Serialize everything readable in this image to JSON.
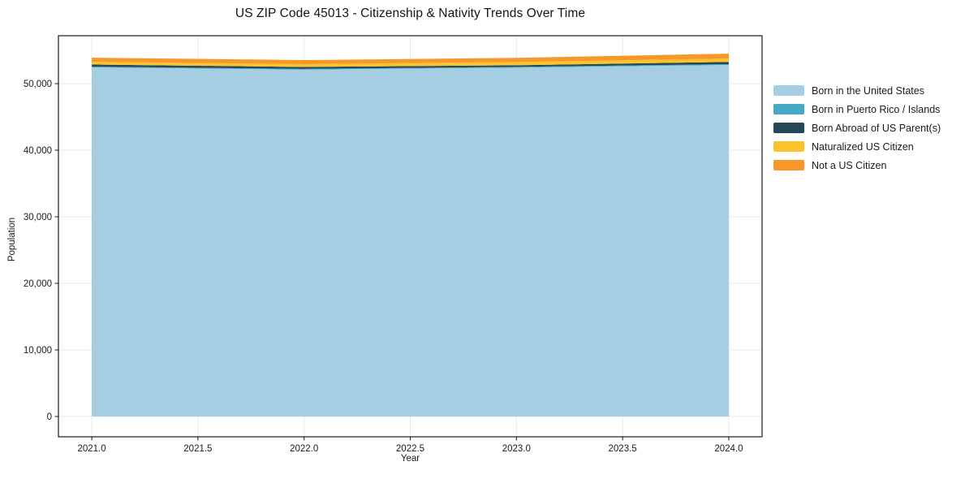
{
  "title": "US ZIP Code 45013 - Citizenship & Nativity Trends Over Time",
  "chart_data": {
    "type": "area",
    "stacked": true,
    "title": "US ZIP Code 45013 - Citizenship & Nativity Trends Over Time",
    "xlabel": "Year",
    "ylabel": "Population",
    "x": [
      2021,
      2022,
      2023,
      2024
    ],
    "series": [
      {
        "name": "Born in the United States",
        "color": "#a6cee3",
        "values": [
          52450,
          52100,
          52400,
          52800
        ]
      },
      {
        "name": "Born in Puerto Rico / Islands",
        "color": "#46aac6",
        "values": [
          100,
          120,
          120,
          130
        ]
      },
      {
        "name": "Born Abroad of US Parent(s)",
        "color": "#23495b",
        "values": [
          330,
          290,
          250,
          340
        ]
      },
      {
        "name": "Naturalized US Citizen",
        "color": "#fcc32f",
        "values": [
          400,
          420,
          480,
          500
        ]
      },
      {
        "name": "Not a US Citizen",
        "color": "#f8982b",
        "values": [
          620,
          610,
          620,
          740
        ]
      }
    ],
    "totals": [
      53900,
      53540,
      53870,
      54510
    ],
    "x_ticks": {
      "values": [
        2021.0,
        2021.5,
        2022.0,
        2022.5,
        2023.0,
        2023.5,
        2024.0
      ],
      "labels": [
        "2021.0",
        "2021.5",
        "2022.0",
        "2022.5",
        "2023.0",
        "2023.5",
        "2024.0"
      ]
    },
    "y_ticks": {
      "values": [
        0,
        10000,
        20000,
        30000,
        40000,
        50000
      ],
      "labels": [
        "0",
        "10,000",
        "20,000",
        "30,000",
        "40,000",
        "50,000"
      ]
    },
    "xlim": [
      2020.843,
      2024.157
    ],
    "ylim": [
      -3050,
      57200
    ],
    "grid": true,
    "grid_color": "#e9e9e9",
    "spine_color": "#1a1a1a",
    "tick_label_color": "#1a1a1a",
    "legend_position": "right"
  }
}
